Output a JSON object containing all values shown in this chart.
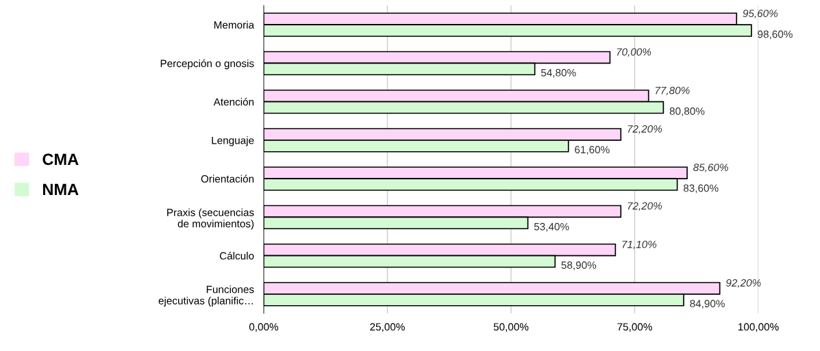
{
  "chart_data": {
    "type": "bar",
    "orientation": "horizontal",
    "categories": [
      "Memoria",
      "Percepción o gnosis",
      "Atención",
      "Lenguaje",
      "Orientación",
      "Praxis (secuencias\nde movimientos)",
      "Cálculo",
      "Funciones\nejecutivas (planific…"
    ],
    "series": [
      {
        "name": "CMA",
        "color": "#ffd6f7",
        "values": [
          95.6,
          70.0,
          77.8,
          72.2,
          85.6,
          72.2,
          71.1,
          92.2
        ],
        "value_labels": [
          "95,60%",
          "70,00%",
          "77,80%",
          "72,20%",
          "85,60%",
          "72,20%",
          "71,10%",
          "92,20%"
        ]
      },
      {
        "name": "NMA",
        "color": "#d4fad4",
        "values": [
          98.6,
          54.8,
          80.8,
          61.6,
          83.6,
          53.4,
          58.9,
          84.9
        ],
        "value_labels": [
          "98,60%",
          "54,80%",
          "80,80%",
          "61,60%",
          "83,60%",
          "53,40%",
          "58,90%",
          "84,90%"
        ]
      }
    ],
    "xlim": [
      0,
      100
    ],
    "xticks": [
      {
        "value": 0,
        "label": "0,00%"
      },
      {
        "value": 25,
        "label": "25,00%"
      },
      {
        "value": 50,
        "label": "50,00%"
      },
      {
        "value": 75,
        "label": "75,00%"
      },
      {
        "value": 100,
        "label": "100,00%"
      }
    ],
    "grid": "x",
    "legend": "left"
  }
}
